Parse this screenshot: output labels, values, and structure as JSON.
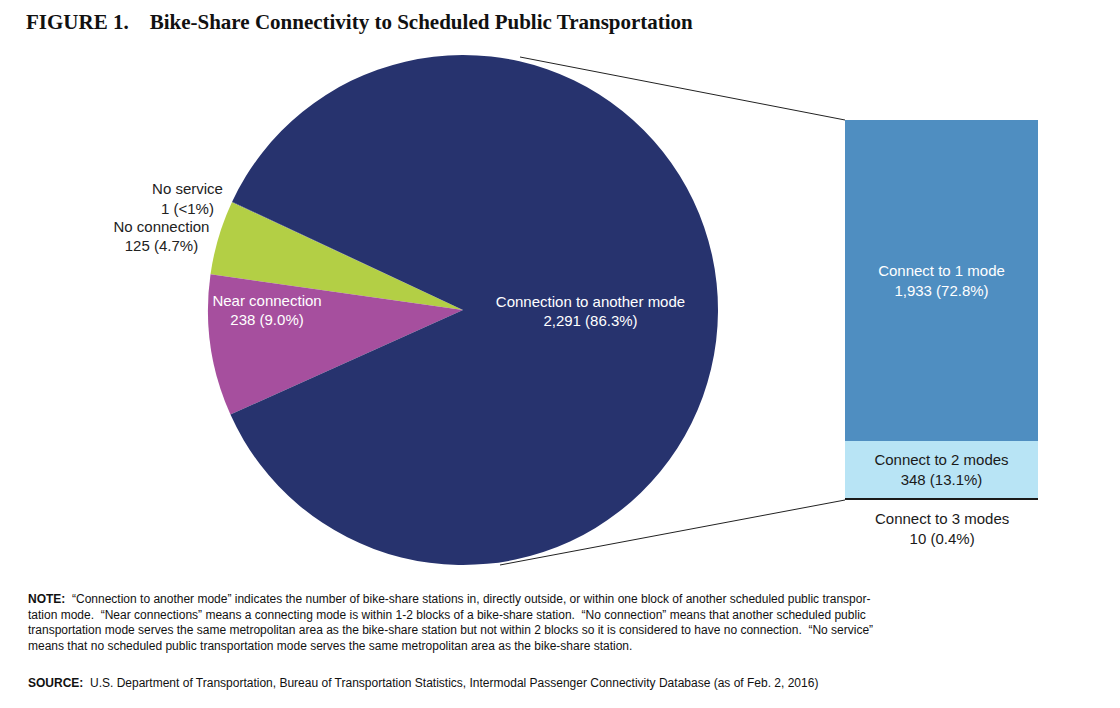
{
  "figure_label": "FIGURE 1.",
  "title": "Bike-Share Connectivity to Scheduled Public Transportation",
  "chart_data": [
    {
      "type": "pie",
      "categories": [
        "No service",
        "No connection",
        "Near connection",
        "Connection to another mode"
      ],
      "values": [
        1,
        125,
        238,
        2291
      ],
      "value_labels": [
        "1 (<1%)",
        "125 (4.7%)",
        "238 (9.0%)",
        "2,291 (86.3%)"
      ],
      "colors": [
        "#27336e",
        "#b3cf45",
        "#a64f9e",
        "#27336e"
      ],
      "data_labels": true
    },
    {
      "type": "bar",
      "stacked": true,
      "categories": [
        "Connect to 1 mode",
        "Connect to 2 modes",
        "Connect to 3 modes"
      ],
      "values": [
        1933,
        348,
        10
      ],
      "value_labels": [
        "1,933 (72.8%)",
        "348 (13.1%)",
        "10 (0.4%)"
      ],
      "colors": [
        "#4f8ec1",
        "#b8e4f5",
        "#1a1a1a"
      ],
      "ylim": [
        0,
        2291
      ],
      "tick_labels": false,
      "data_labels": true
    }
  ],
  "note": {
    "label": "NOTE:",
    "lines": [
      "“Connection to another mode” indicates the number of bike-share stations in, directly outside, or within one block of another scheduled public transpor-",
      "tation mode.  “Near connections” means a connecting mode is within 1-2 blocks of a bike-share station.  “No connection” means that another scheduled public",
      "transportation mode serves the same metropolitan area as the bike-share station but not within 2 blocks so it is considered to have no connection.  “No service”",
      "means that no scheduled public transportation mode serves the same metropolitan area as the bike-share station."
    ]
  },
  "source": {
    "label": "SOURCE:",
    "text": "U.S. Department of Transportation, Bureau of Transportation Statistics, Intermodal Passenger Connectivity Database (as of Feb. 2, 2016)"
  }
}
